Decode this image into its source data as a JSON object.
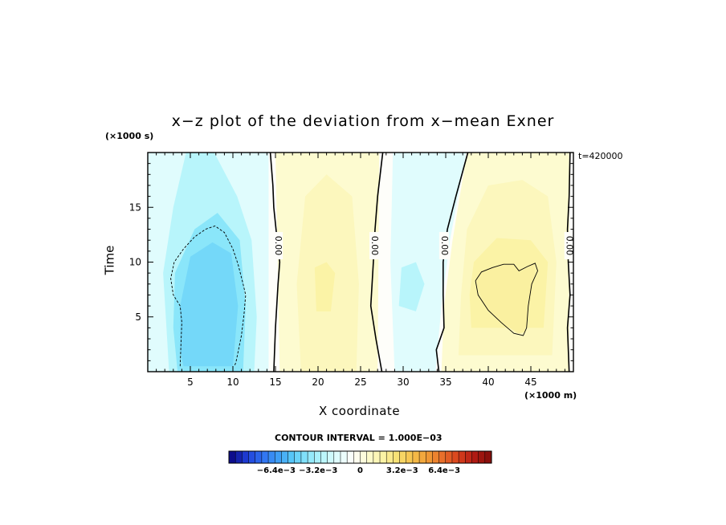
{
  "chart_data": {
    "type": "heatmap",
    "title": "x−z plot of the deviation from x−mean Exner",
    "xlabel": "X coordinate",
    "ylabel": "Time",
    "x_unit": "(×1000 m)",
    "y_unit": "(×1000 s)",
    "time_label": "t=420000",
    "contour_interval": "CONTOUR INTERVAL = 1.000E−03",
    "xlim": [
      0,
      50
    ],
    "ylim": [
      0,
      20
    ],
    "xticks": [
      5,
      10,
      15,
      20,
      25,
      30,
      35,
      40,
      45
    ],
    "yticks": [
      5,
      10,
      15
    ],
    "zero_contour_labels": [
      "0.00",
      "0.00",
      "0.00",
      "0.00"
    ],
    "colorbar_ticks": [
      "−6.4e−3",
      "−3.2e−3",
      "0",
      "3.2e−3",
      "6.4e−3"
    ],
    "colorbar_range": [
      -0.01,
      0.01
    ],
    "colorbar_colors": [
      "#0d0d8c",
      "#1f3fd9",
      "#2f6ff0",
      "#3d9cf5",
      "#58c8f8",
      "#8ae6fa",
      "#b8f5fb",
      "#e0fcfd",
      "#fefefa",
      "#fdfbd0",
      "#fbf3a6",
      "#f8e071",
      "#f5c04a",
      "#f09a35",
      "#e86d2a",
      "#d8421d",
      "#b51c14",
      "#8a0f0c"
    ],
    "fields": [
      {
        "region": "negative cells x 0-14 km",
        "peak": -0.004
      },
      {
        "region": "positive cells x 15-27 km",
        "peak": 0.002
      },
      {
        "region": "negative cells x 28-35 km",
        "peak": -0.002
      },
      {
        "region": "positive cells x 36-49 km",
        "peak": 0.003
      }
    ]
  }
}
